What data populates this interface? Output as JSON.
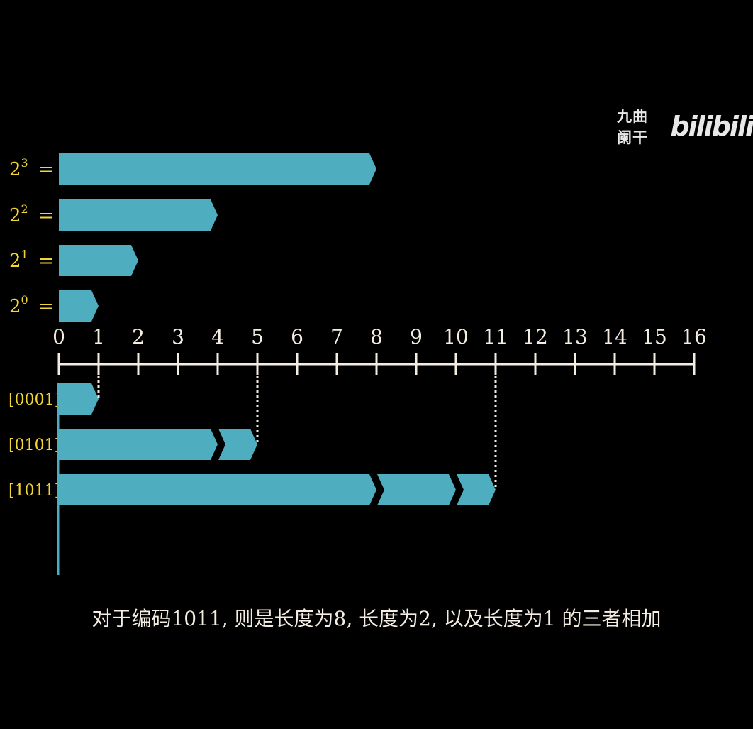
{
  "powers": [
    {
      "base": "2",
      "exp": "3",
      "rhs": "= 8",
      "value": 8
    },
    {
      "base": "2",
      "exp": "2",
      "rhs": "= 4",
      "value": 4
    },
    {
      "base": "2",
      "exp": "1",
      "rhs": "= 2",
      "value": 2
    },
    {
      "base": "2",
      "exp": "0",
      "rhs": "= 1",
      "value": 1
    }
  ],
  "number_line": {
    "min": 0,
    "max": 16,
    "ticks": [
      "0",
      "1",
      "2",
      "3",
      "4",
      "5",
      "6",
      "7",
      "8",
      "9",
      "10",
      "11",
      "12",
      "13",
      "14",
      "15",
      "16"
    ]
  },
  "codes": [
    {
      "label": "[0001]",
      "segments": [
        1
      ],
      "total": 1
    },
    {
      "label": "[0101]",
      "segments": [
        4,
        1
      ],
      "total": 5
    },
    {
      "label": "[1011]",
      "segments": [
        8,
        2,
        1
      ],
      "total": 11
    }
  ],
  "watermark": {
    "text": "九曲阑干",
    "logo": "bilibili"
  },
  "caption": "对于编码1011, 则是长度为8, 长度为2, 以及长度为1 的三者相加",
  "colors": {
    "bar": "#4eadbf",
    "math": "#f2d638",
    "axis": "#f5ede2",
    "background": "#000000"
  }
}
